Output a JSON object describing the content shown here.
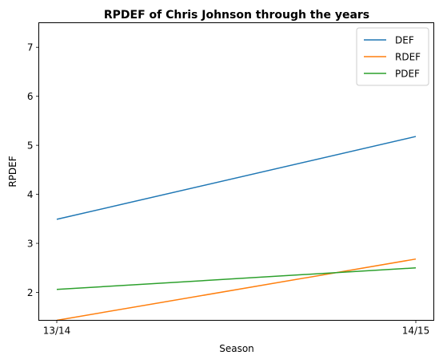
{
  "chart_data": {
    "type": "line",
    "title": "RPDEF of Chris Johnson through the years",
    "xlabel": "Season",
    "ylabel": "RPDEF",
    "categories": [
      "13/14",
      "14/15"
    ],
    "ylim": [
      1.43,
      7.5
    ],
    "yticks": [
      2,
      3,
      4,
      5,
      6,
      7
    ],
    "grid": false,
    "legend_position": "top-right",
    "series": [
      {
        "name": "DEF",
        "color": "#1f77b4",
        "values": [
          3.49,
          5.18
        ]
      },
      {
        "name": "RDEF",
        "color": "#ff7f0e",
        "values": [
          1.43,
          2.68
        ]
      },
      {
        "name": "PDEF",
        "color": "#2ca02c",
        "values": [
          2.06,
          2.5
        ]
      }
    ]
  }
}
